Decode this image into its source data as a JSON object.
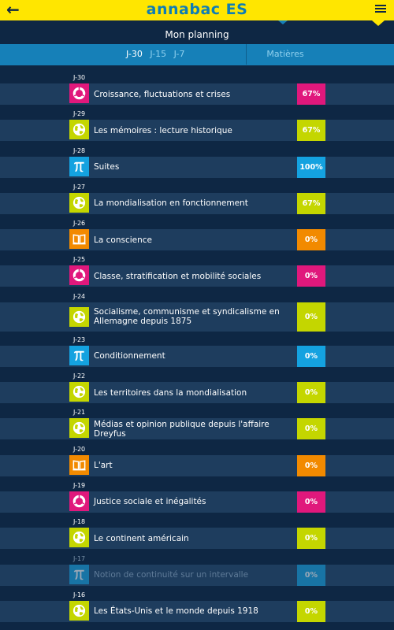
{
  "header": {
    "back_icon": "back-arrow-icon",
    "title": "annabac ES",
    "menu_icon": "hamburger-menu-icon"
  },
  "planning": {
    "title": "Mon planning"
  },
  "tabs": {
    "items": [
      "J-30",
      "J-15",
      "J-7"
    ],
    "active": "J-30",
    "matieres": "Matières"
  },
  "colors": {
    "bes": "#e0187c",
    "hg": "#c4d600",
    "math": "#14a2e0",
    "philo": "#f28a00"
  },
  "items": [
    {
      "day": "J-30",
      "subject": "bes",
      "icon": "donut-chart-icon",
      "label": "Croissance, fluctuations et crises",
      "percent": "67%"
    },
    {
      "day": "J-29",
      "subject": "hg",
      "icon": "globe-icon",
      "label": "Les mémoires : lecture historique",
      "percent": "67%"
    },
    {
      "day": "J-28",
      "subject": "math",
      "icon": "pi-icon",
      "label": "Suites",
      "percent": "100%"
    },
    {
      "day": "J-27",
      "subject": "hg",
      "icon": "globe-icon",
      "label": "La mondialisation en fonctionnement",
      "percent": "67%"
    },
    {
      "day": "J-26",
      "subject": "philo",
      "icon": "open-book-icon",
      "label": "La conscience",
      "percent": "0%"
    },
    {
      "day": "J-25",
      "subject": "bes",
      "icon": "donut-chart-icon",
      "label": "Classe, stratification et mobilité sociales",
      "percent": "0%"
    },
    {
      "day": "J-24",
      "subject": "hg",
      "icon": "globe-icon",
      "label": "Socialisme, communisme et syndicalisme en Allemagne depuis 1875",
      "percent": "0%"
    },
    {
      "day": "J-23",
      "subject": "math",
      "icon": "pi-icon",
      "label": "Conditionnement",
      "percent": "0%"
    },
    {
      "day": "J-22",
      "subject": "hg",
      "icon": "globe-icon",
      "label": "Les territoires dans la mondialisation",
      "percent": "0%"
    },
    {
      "day": "J-21",
      "subject": "hg",
      "icon": "globe-icon",
      "label": "Médias et opinion publique depuis l'affaire Dreyfus",
      "percent": "0%"
    },
    {
      "day": "J-20",
      "subject": "philo",
      "icon": "open-book-icon",
      "label": "L'art",
      "percent": "0%"
    },
    {
      "day": "J-19",
      "subject": "bes",
      "icon": "donut-chart-icon",
      "label": "Justice sociale et inégalités",
      "percent": "0%"
    },
    {
      "day": "J-18",
      "subject": "hg",
      "icon": "globe-icon",
      "label": "Le continent américain",
      "percent": "0%"
    },
    {
      "day": "J-17",
      "subject": "math",
      "icon": "pi-icon",
      "label": "Notion de continuité sur un intervalle",
      "percent": "0%",
      "dimmed": true
    },
    {
      "day": "J-16",
      "subject": "hg",
      "icon": "globe-icon",
      "label": "Les États-Unis et le monde depuis 1918",
      "percent": "0%"
    }
  ]
}
